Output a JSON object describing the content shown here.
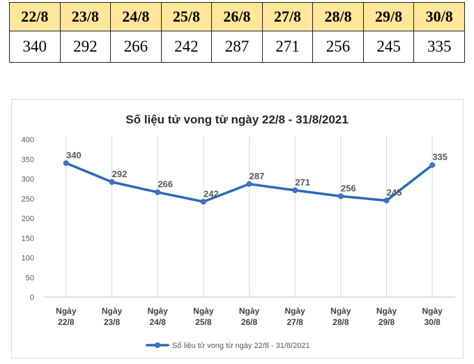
{
  "table": {
    "headers": [
      "22/8",
      "23/8",
      "24/8",
      "25/8",
      "26/8",
      "27/8",
      "28/8",
      "29/8",
      "30/8"
    ],
    "values": [
      "340",
      "292",
      "266",
      "242",
      "287",
      "271",
      "256",
      "245",
      "335"
    ]
  },
  "chart_data": {
    "type": "line",
    "title": "Số liệu tử vong từ ngày 22/8 - 31/8/2021",
    "xlabel": "",
    "ylabel": "",
    "categories": [
      [
        "Ngày",
        "22/8"
      ],
      [
        "Ngày",
        "23/8"
      ],
      [
        "Ngày",
        "24/8"
      ],
      [
        "Ngày",
        "25/8"
      ],
      [
        "Ngày",
        "26/8"
      ],
      [
        "Ngày",
        "27/8"
      ],
      [
        "Ngày",
        "28/8"
      ],
      [
        "Ngày",
        "29/8"
      ],
      [
        "Ngày",
        "30/8"
      ]
    ],
    "series": [
      {
        "name": "Số liệu tử vong từ ngày 22/8 - 31/8/2021",
        "values": [
          340,
          292,
          266,
          242,
          287,
          271,
          256,
          245,
          335
        ]
      }
    ],
    "ylim": [
      0,
      400
    ],
    "yticks": [
      0,
      50,
      100,
      150,
      200,
      250,
      300,
      350,
      400
    ],
    "grid": "vertical",
    "legend": "bottom",
    "colors": {
      "line": "#2a6ab8",
      "marker": "#4472c4",
      "label": "#595959",
      "grid": "#d9d9d9"
    }
  }
}
